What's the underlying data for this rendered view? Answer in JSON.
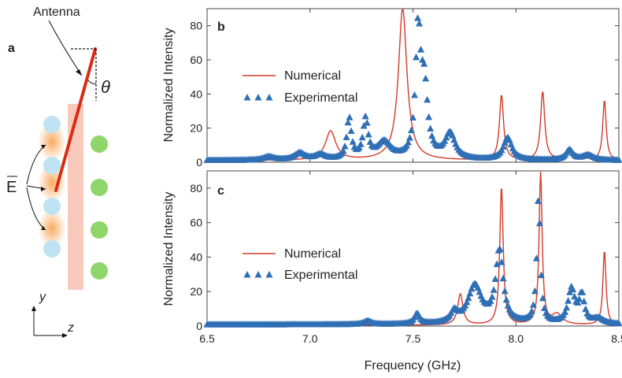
{
  "schematic": {
    "panel_letter": "a",
    "antenna_label": "Antenna",
    "theta_label": "θ",
    "field_label": "E",
    "axis_y": "y",
    "axis_z": "z",
    "colors": {
      "antenna": "#d92b12",
      "band": "#f9c9bb",
      "glow": "#f7a65a",
      "sphere": "#bfe3f2",
      "green": "#8fd66a"
    }
  },
  "chart_data": [
    {
      "type": "line",
      "panel": "b",
      "xlabel": "",
      "ylabel": "Normalized Intensity",
      "xlim": [
        6.5,
        8.5
      ],
      "ylim": [
        0,
        90
      ],
      "yticks": [
        0,
        20,
        40,
        60,
        80
      ],
      "xticks": [
        6.5,
        7.0,
        7.5,
        8.0,
        8.5
      ],
      "grid": false,
      "legend_position": "center-left",
      "series": [
        {
          "name": "Numerical",
          "style": "line",
          "color": "#d23a2a",
          "peaks": [
            {
              "x": 7.1,
              "y": 17,
              "w": 0.03
            },
            {
              "x": 7.45,
              "y": 89,
              "w": 0.025
            },
            {
              "x": 7.93,
              "y": 38,
              "w": 0.012
            },
            {
              "x": 8.13,
              "y": 40,
              "w": 0.012
            },
            {
              "x": 8.27,
              "y": 5,
              "w": 0.03
            },
            {
              "x": 8.43,
              "y": 35,
              "w": 0.01
            }
          ],
          "baseline": 1
        },
        {
          "name": "Experimental",
          "style": "triangles",
          "color": "#2f6fb5",
          "peaks": [
            {
              "x": 6.8,
              "y": 2,
              "w": 0.03
            },
            {
              "x": 6.95,
              "y": 4,
              "w": 0.03
            },
            {
              "x": 7.05,
              "y": 3,
              "w": 0.03
            },
            {
              "x": 7.19,
              "y": 24,
              "w": 0.013
            },
            {
              "x": 7.27,
              "y": 23,
              "w": 0.015
            },
            {
              "x": 7.36,
              "y": 10,
              "w": 0.04
            },
            {
              "x": 7.525,
              "y": 72,
              "w": 0.015
            },
            {
              "x": 7.555,
              "y": 40,
              "w": 0.02
            },
            {
              "x": 7.68,
              "y": 15,
              "w": 0.03
            },
            {
              "x": 7.96,
              "y": 13,
              "w": 0.025
            },
            {
              "x": 8.26,
              "y": 6,
              "w": 0.02
            },
            {
              "x": 8.35,
              "y": 3,
              "w": 0.03
            }
          ],
          "baseline": 1
        }
      ]
    },
    {
      "type": "line",
      "panel": "c",
      "xlabel": "Frequency (GHz)",
      "ylabel": "Normalized Intensity",
      "xlim": [
        6.5,
        8.5
      ],
      "ylim": [
        0,
        90
      ],
      "yticks": [
        0,
        20,
        40,
        60,
        80
      ],
      "xticks": [
        6.5,
        7.0,
        7.5,
        8.0,
        8.5
      ],
      "grid": false,
      "legend_position": "center-left",
      "series": [
        {
          "name": "Numerical",
          "style": "line",
          "color": "#d23a2a",
          "peaks": [
            {
              "x": 7.73,
              "y": 18,
              "w": 0.015
            },
            {
              "x": 7.93,
              "y": 80,
              "w": 0.01
            },
            {
              "x": 8.12,
              "y": 88,
              "w": 0.009
            },
            {
              "x": 8.2,
              "y": 6,
              "w": 0.03
            },
            {
              "x": 8.43,
              "y": 43,
              "w": 0.009
            }
          ],
          "baseline": 0.5
        },
        {
          "name": "Experimental",
          "style": "triangles",
          "color": "#2f6fb5",
          "peaks": [
            {
              "x": 7.28,
              "y": 2,
              "w": 0.02
            },
            {
              "x": 7.52,
              "y": 6,
              "w": 0.015
            },
            {
              "x": 7.7,
              "y": 6,
              "w": 0.02
            },
            {
              "x": 7.8,
              "y": 22,
              "w": 0.04
            },
            {
              "x": 7.92,
              "y": 42,
              "w": 0.022
            },
            {
              "x": 8.11,
              "y": 74,
              "w": 0.01
            },
            {
              "x": 8.27,
              "y": 20,
              "w": 0.02
            },
            {
              "x": 8.32,
              "y": 16,
              "w": 0.015
            },
            {
              "x": 8.4,
              "y": 3,
              "w": 0.03
            }
          ],
          "baseline": 0.8
        }
      ]
    }
  ]
}
